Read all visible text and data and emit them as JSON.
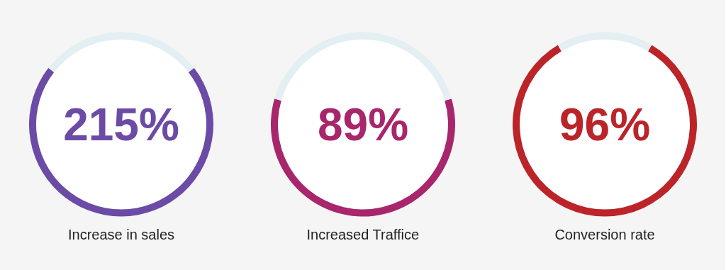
{
  "chart_data": [
    {
      "type": "donut",
      "title": "Increase in sales",
      "annotations": [
        "215%"
      ],
      "categories": [
        null,
        null
      ],
      "values": [
        71,
        29
      ],
      "colors": [
        "#6b4ba6",
        "#e3eff2"
      ]
    },
    {
      "type": "donut",
      "title": "Increased Traffice",
      "annotations": [
        "89%"
      ],
      "categories": [
        null,
        null
      ],
      "values": [
        59,
        41
      ],
      "colors": [
        "#a8266b",
        "#e3eff2"
      ]
    },
    {
      "type": "donut",
      "title": "Conversion rate",
      "annotations": [
        "96%"
      ],
      "categories": [
        null,
        null
      ],
      "values": [
        83,
        17
      ],
      "colors": [
        "#bb2428",
        "#e3eff2"
      ]
    }
  ]
}
